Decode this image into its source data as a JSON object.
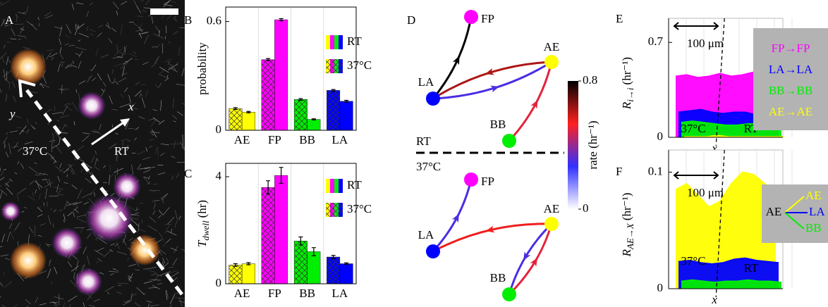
{
  "panel_a": {
    "label": "A",
    "x_label": "x",
    "y_label": "y",
    "left_label": "37°C",
    "right_label": "RT"
  },
  "chart_data": [
    {
      "type": "bar",
      "label": "B",
      "ylabel": "probability",
      "categories": [
        "AE",
        "FP",
        "BB",
        "LA"
      ],
      "colors": [
        "#ffff00",
        "#ff00ff",
        "#00ee00",
        "#0000ff"
      ],
      "series": [
        {
          "name": "37°C",
          "hatch": true,
          "values": [
            0.12,
            0.39,
            0.17,
            0.22
          ],
          "errors": [
            0.005,
            0.006,
            0.005,
            0.005
          ]
        },
        {
          "name": "RT",
          "hatch": false,
          "values": [
            0.1,
            0.61,
            0.06,
            0.16
          ],
          "errors": [
            0.004,
            0.006,
            0.003,
            0.005
          ]
        }
      ],
      "ylim": [
        0,
        0.68
      ],
      "yticks": [
        0,
        0.6
      ]
    },
    {
      "type": "bar",
      "label": "C",
      "ylabel": {
        "main": "T",
        "sub": "dwell",
        "unit": "(hr)"
      },
      "categories": [
        "AE",
        "FP",
        "BB",
        "LA"
      ],
      "colors": [
        "#ffff00",
        "#ff00ff",
        "#00ee00",
        "#0000ff"
      ],
      "series": [
        {
          "name": "37°C",
          "hatch": true,
          "values": [
            0.7,
            3.6,
            1.6,
            1.0
          ],
          "errors": [
            0.05,
            0.25,
            0.15,
            0.06
          ]
        },
        {
          "name": "RT",
          "hatch": false,
          "values": [
            0.75,
            4.05,
            1.2,
            0.75
          ],
          "errors": [
            0.04,
            0.3,
            0.15,
            0.03
          ]
        }
      ],
      "ylim": [
        0,
        4.5
      ],
      "yticks": [
        0,
        4
      ]
    },
    {
      "type": "network",
      "label": "D",
      "clim": [
        0,
        0.8
      ],
      "cticks": [
        0,
        0.8
      ],
      "clabel": "rate (hr⁻¹)",
      "colormap": [
        "#ffffff",
        "#3030ff",
        "#ff2020",
        "#000000"
      ],
      "groups": [
        {
          "name": "RT",
          "nodes": [
            {
              "name": "FP",
              "color": "#ff00ff"
            },
            {
              "name": "AE",
              "color": "#ffff00"
            },
            {
              "name": "LA",
              "color": "#0000ff"
            },
            {
              "name": "BB",
              "color": "#00ee00"
            }
          ],
          "edges": [
            {
              "from": "LA",
              "to": "FP",
              "rate": 0.8
            },
            {
              "from": "AE",
              "to": "LA",
              "rate": 0.62
            },
            {
              "from": "LA",
              "to": "AE",
              "rate": 0.3
            },
            {
              "from": "BB",
              "to": "AE",
              "rate": 0.5
            }
          ]
        },
        {
          "name": "37°C",
          "nodes": [
            {
              "name": "FP",
              "color": "#ff00ff"
            },
            {
              "name": "AE",
              "color": "#ffff00"
            },
            {
              "name": "LA",
              "color": "#0000ff"
            },
            {
              "name": "BB",
              "color": "#00ee00"
            }
          ],
          "edges": [
            {
              "from": "LA",
              "to": "FP",
              "rate": 0.3
            },
            {
              "from": "AE",
              "to": "LA",
              "rate": 0.55
            },
            {
              "from": "BB",
              "to": "AE",
              "rate": 0.5
            },
            {
              "from": "AE",
              "to": "BB",
              "rate": 0.3
            }
          ]
        }
      ]
    },
    {
      "type": "area",
      "label": "E",
      "ylabel": {
        "main": "R",
        "sub": "i→i",
        "unit": "(hr⁻¹)"
      },
      "xlabel": "x",
      "ylim": [
        0,
        0.8
      ],
      "yticks": [
        0,
        0.7
      ],
      "annotations": {
        "scale": "100 μm",
        "left": "37°C",
        "right": "RT"
      },
      "series": [
        {
          "name": "FP→FP",
          "color": "#ff00ff",
          "values": [
            0.45,
            0.46,
            0.44,
            0.45,
            0.47,
            0.45,
            0.46,
            0.48,
            0.52,
            0.6
          ]
        },
        {
          "name": "LA→LA",
          "color": "#0000ff",
          "values": [
            0.2,
            0.21,
            0.22,
            0.2,
            0.19,
            0.2,
            0.2,
            0.18,
            0.17,
            0.16
          ]
        },
        {
          "name": "BB→BB",
          "color": "#00ee00",
          "values": [
            0.14,
            0.15,
            0.14,
            0.13,
            0.12,
            0.12,
            0.13,
            0.13,
            0.12,
            0.11
          ]
        },
        {
          "name": "AE→AE",
          "color": "#ffff00",
          "values": [
            0.05,
            0.05,
            0.05,
            0.06,
            0.05,
            0.05,
            0.05,
            0.05,
            0.05,
            0.05
          ]
        }
      ]
    },
    {
      "type": "area",
      "label": "F",
      "ylabel": {
        "main": "R",
        "sub": "AE→X",
        "unit": "(hr⁻¹)"
      },
      "xlabel": "x",
      "ylim": [
        0,
        0.11
      ],
      "yticks": [
        0,
        0.1
      ],
      "legend_source": "AE",
      "annotations": {
        "scale": "100 μm",
        "left": "37°C",
        "right": "RT"
      },
      "series": [
        {
          "name": "AE",
          "color": "#ffff00",
          "values": [
            0.085,
            0.09,
            0.08,
            0.07,
            0.075,
            0.09,
            0.1,
            0.098,
            0.09,
            0.085
          ]
        },
        {
          "name": "LA",
          "color": "#0000ff",
          "values": [
            0.025,
            0.026,
            0.024,
            0.023,
            0.024,
            0.027,
            0.028,
            0.026,
            0.025,
            0.024
          ]
        },
        {
          "name": "BB",
          "color": "#00ee00",
          "values": [
            0.01,
            0.011,
            0.01,
            0.009,
            0.01,
            0.01,
            0.011,
            0.01,
            0.01,
            0.009
          ]
        }
      ]
    }
  ]
}
